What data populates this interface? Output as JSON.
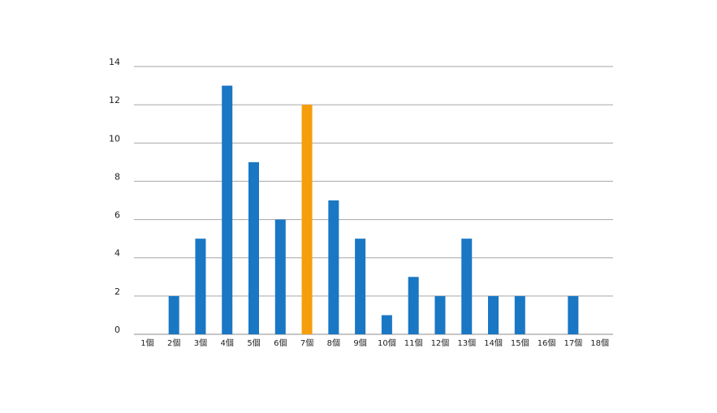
{
  "chart_data": {
    "type": "bar",
    "categories": [
      "1個",
      "2個",
      "3個",
      "4個",
      "5個",
      "6個",
      "7個",
      "8個",
      "9個",
      "10個",
      "11個",
      "12個",
      "13個",
      "14個",
      "15個",
      "16個",
      "17個",
      "18個"
    ],
    "values": [
      0,
      2,
      5,
      13,
      9,
      6,
      12,
      7,
      5,
      1,
      3,
      2,
      5,
      2,
      2,
      0,
      2,
      0
    ],
    "highlight_category": "7個",
    "title": "",
    "xlabel": "",
    "ylabel": "",
    "ylim": [
      0,
      14
    ],
    "yticks": [
      0,
      2,
      4,
      6,
      8,
      10,
      12,
      14
    ],
    "grid": true,
    "legend": "none"
  },
  "colors": {
    "bar": "#1a77c4",
    "highlight": "#f59e0b",
    "grid": "#a6a6a6",
    "axis": "#8c8c8c",
    "text": "#222222",
    "background": "#ffffff"
  }
}
